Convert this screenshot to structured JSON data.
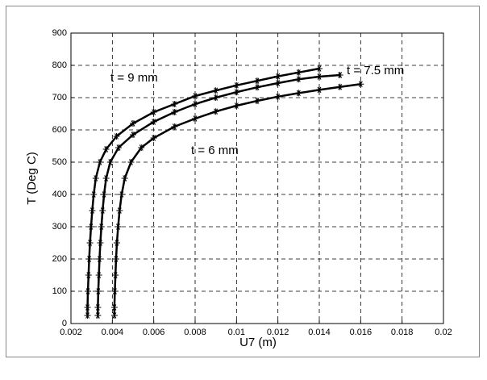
{
  "chart_data": {
    "type": "scatter",
    "xlabel": "U7 (m)",
    "ylabel": "T (Deg C)",
    "xlim": [
      0.002,
      0.02
    ],
    "ylim": [
      0,
      900
    ],
    "xticks": [
      0.002,
      0.004,
      0.006,
      0.008,
      0.01,
      0.012,
      0.014,
      0.016,
      0.018,
      0.02
    ],
    "yticks": [
      0,
      100,
      200,
      300,
      400,
      500,
      600,
      700,
      800,
      900
    ],
    "grid": true,
    "marker": "*",
    "series": [
      {
        "name": "t = 9 mm",
        "color": "#000000",
        "x": [
          0.0028,
          0.0028,
          0.00282,
          0.00285,
          0.00288,
          0.00292,
          0.00297,
          0.00303,
          0.0031,
          0.0032,
          0.0034,
          0.0037,
          0.0042,
          0.005,
          0.006,
          0.007,
          0.008,
          0.009,
          0.01,
          0.011,
          0.012,
          0.013,
          0.014
        ],
        "values": [
          25,
          50,
          100,
          150,
          200,
          250,
          300,
          350,
          400,
          450,
          500,
          540,
          580,
          620,
          655,
          680,
          705,
          722,
          738,
          752,
          766,
          778,
          790
        ]
      },
      {
        "name": "t = 7.5 mm",
        "color": "#000000",
        "x": [
          0.0033,
          0.0033,
          0.00332,
          0.00335,
          0.00338,
          0.00342,
          0.00347,
          0.00353,
          0.0036,
          0.0037,
          0.0039,
          0.0043,
          0.005,
          0.006,
          0.007,
          0.008,
          0.009,
          0.01,
          0.011,
          0.012,
          0.013,
          0.014,
          0.015
        ],
        "values": [
          25,
          50,
          100,
          150,
          200,
          250,
          300,
          350,
          400,
          450,
          500,
          545,
          585,
          625,
          655,
          680,
          700,
          717,
          732,
          745,
          757,
          765,
          770
        ]
      },
      {
        "name": "t = 6 mm",
        "color": "#000000",
        "x": [
          0.0041,
          0.0041,
          0.00412,
          0.00415,
          0.00418,
          0.00422,
          0.00428,
          0.00435,
          0.00445,
          0.0046,
          0.0049,
          0.0054,
          0.006,
          0.007,
          0.008,
          0.009,
          0.01,
          0.011,
          0.012,
          0.013,
          0.014,
          0.015,
          0.016
        ],
        "values": [
          25,
          50,
          100,
          150,
          200,
          250,
          300,
          350,
          400,
          450,
          500,
          545,
          575,
          610,
          635,
          657,
          675,
          690,
          703,
          714,
          724,
          733,
          742
        ]
      }
    ]
  }
}
